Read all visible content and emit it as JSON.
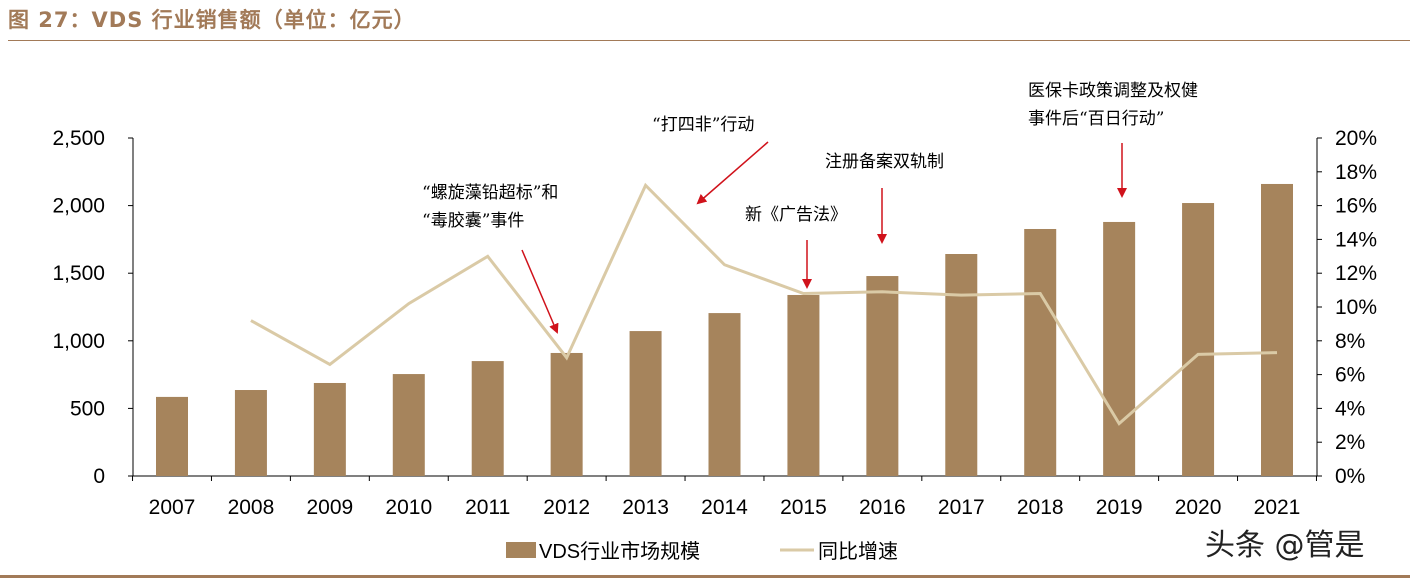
{
  "title": "图 27：VDS 行业销售额（单位：亿元）",
  "watermark": "头条 @管是",
  "colors": {
    "bar": "#a6845c",
    "line": "#dacaa6",
    "arrow": "#d0121b",
    "title": "#a27a58"
  },
  "chart_data": {
    "type": "bar+line",
    "categories": [
      "2007",
      "2008",
      "2009",
      "2010",
      "2011",
      "2012",
      "2013",
      "2014",
      "2015",
      "2016",
      "2017",
      "2018",
      "2019",
      "2020",
      "2021"
    ],
    "series": [
      {
        "name": "VDS行业市场规模",
        "type": "bar",
        "axis": "left",
        "values": [
          585,
          636,
          688,
          754,
          850,
          910,
          1072,
          1205,
          1339,
          1479,
          1642,
          1827,
          1879,
          2019,
          2160
        ]
      },
      {
        "name": "同比增速",
        "type": "line",
        "axis": "right",
        "values": [
          null,
          9.2,
          6.6,
          10.2,
          13.0,
          7.0,
          17.2,
          12.5,
          10.8,
          10.9,
          10.7,
          10.8,
          3.1,
          7.2,
          7.3
        ]
      }
    ],
    "left_axis": {
      "ylim": [
        0,
        2500
      ],
      "ticks": [
        "0",
        "500",
        "1,000",
        "1,500",
        "2,000",
        "2,500"
      ]
    },
    "right_axis": {
      "ylim": [
        0,
        20
      ],
      "ticks": [
        "0%",
        "2%",
        "4%",
        "6%",
        "8%",
        "10%",
        "12%",
        "14%",
        "16%",
        "18%",
        "20%"
      ]
    },
    "legend": {
      "placement": "bottom",
      "entries": [
        "VDS行业市场规模",
        "同比增速"
      ]
    },
    "annotations": [
      {
        "lines": [
          "“螺旋藻铅超标”和",
          "“毒胶囊”事件"
        ],
        "target": "2012"
      },
      {
        "lines": [
          "“打四非”行动"
        ],
        "target": "2013"
      },
      {
        "lines": [
          "注册备案双轨制"
        ],
        "target": "2016"
      },
      {
        "lines": [
          "新《广告法》"
        ],
        "target": "2015"
      },
      {
        "lines": [
          "医保卡政策调整及权健",
          "事件后“百日行动”"
        ],
        "target": "2019"
      }
    ]
  }
}
